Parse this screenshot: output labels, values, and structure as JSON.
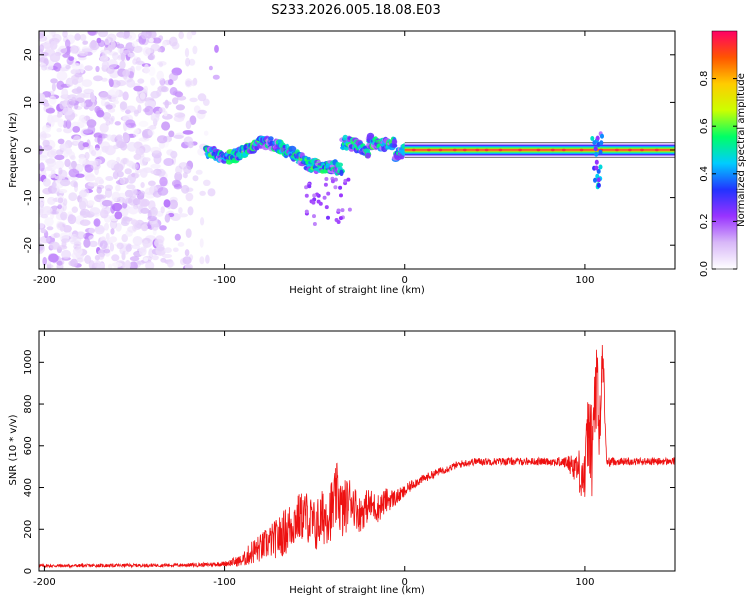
{
  "chart_data": [
    {
      "type": "heatmap",
      "title": "S233.2026.005.18.08.E03",
      "xlabel": "Height of straight line (km)",
      "ylabel": "Frequency (Hz)",
      "xlim": [
        -203,
        150
      ],
      "ylim": [
        -25,
        25
      ],
      "xticks": [
        -200,
        -100,
        0,
        100
      ],
      "yticks": [
        -20,
        -10,
        0,
        10,
        20
      ],
      "colorbar": {
        "label": "Normalized spectral amplitude",
        "range": [
          0,
          1
        ],
        "ticks": [
          0.0,
          0.2,
          0.4,
          0.6,
          0.8
        ],
        "tick_labels": [
          "0.0",
          "0.2",
          "0.4",
          "0.6",
          "0.8"
        ],
        "colormap": [
          "#ffffff",
          "#d8b8f8",
          "#9933ff",
          "#2233ff",
          "#00ccff",
          "#00ff66",
          "#ccff00",
          "#ffcc00",
          "#ff5500",
          "#ff0066"
        ]
      },
      "features": {
        "noise_region_x": [
          -203,
          -110
        ],
        "signal_line_freq_hz": 0,
        "signal_line_x": [
          0,
          150
        ],
        "transition_x": [
          -110,
          0
        ]
      }
    },
    {
      "type": "line",
      "xlabel": "Height of straight line (km)",
      "ylabel": "SNR (10 * v/v)",
      "xlim": [
        -203,
        150
      ],
      "ylim": [
        0,
        1150
      ],
      "xticks": [
        -200,
        -100,
        0,
        100
      ],
      "yticks": [
        0,
        200,
        400,
        600,
        800,
        1000
      ],
      "color": "#ee1111",
      "x": [
        -203,
        -190,
        -170,
        -150,
        -130,
        -110,
        -100,
        -90,
        -85,
        -80,
        -75,
        -70,
        -65,
        -60,
        -55,
        -50,
        -45,
        -40,
        -37,
        -35,
        -30,
        -25,
        -20,
        -15,
        -10,
        -5,
        0,
        5,
        10,
        15,
        20,
        25,
        30,
        35,
        40,
        50,
        60,
        70,
        80,
        90,
        95,
        100,
        102,
        104,
        106,
        108,
        110,
        112,
        115,
        120,
        130,
        140,
        150
      ],
      "values": [
        25,
        25,
        26,
        27,
        28,
        30,
        35,
        50,
        90,
        110,
        140,
        160,
        200,
        250,
        270,
        210,
        260,
        300,
        380,
        280,
        350,
        270,
        320,
        300,
        340,
        350,
        380,
        420,
        440,
        460,
        480,
        495,
        510,
        520,
        525,
        525,
        525,
        525,
        525,
        520,
        500,
        450,
        700,
        550,
        900,
        650,
        1050,
        520,
        525,
        525,
        525,
        525,
        525
      ],
      "noise_amplitude": [
        8,
        8,
        8,
        8,
        8,
        10,
        12,
        30,
        60,
        70,
        80,
        100,
        120,
        120,
        120,
        130,
        140,
        150,
        160,
        150,
        110,
        90,
        80,
        70,
        60,
        40,
        30,
        25,
        20,
        20,
        18,
        18,
        18,
        18,
        18,
        18,
        18,
        18,
        18,
        30,
        80,
        150,
        200,
        220,
        300,
        250,
        100,
        25,
        20,
        18,
        18,
        18,
        18
      ]
    }
  ]
}
